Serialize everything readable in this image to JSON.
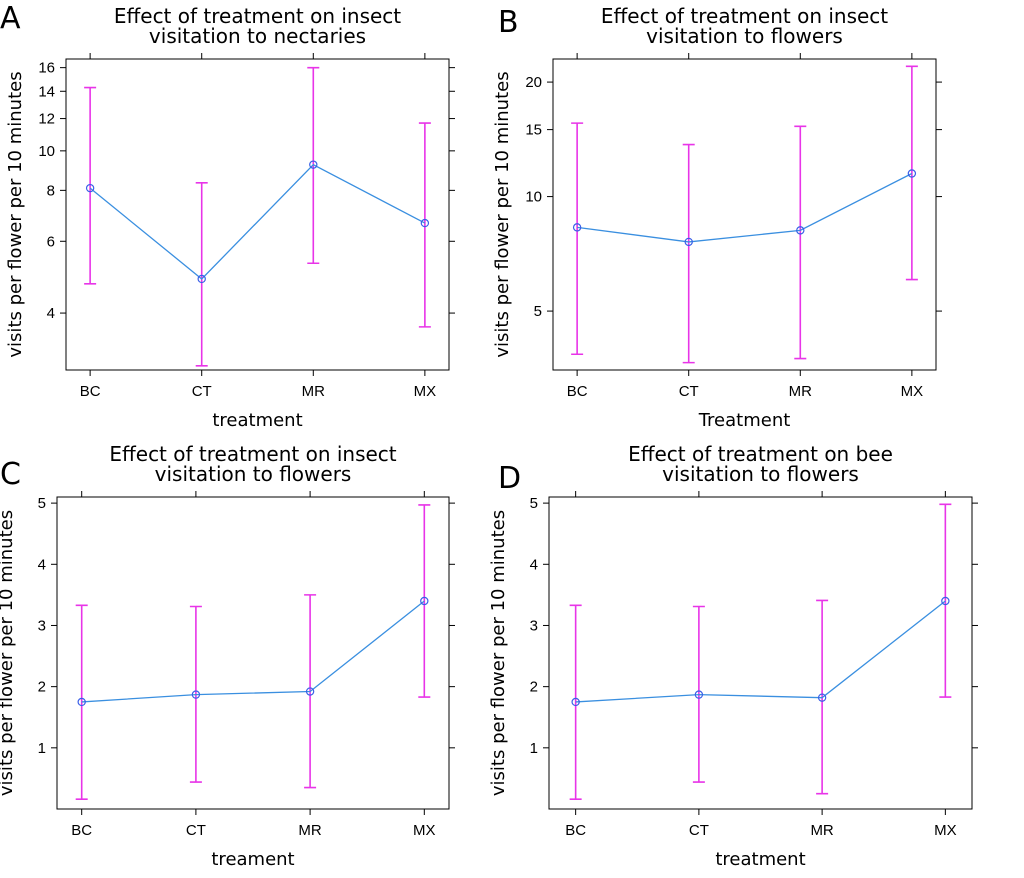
{
  "chart_data": [
    {
      "panel": "A",
      "type": "line",
      "title_lines": [
        "Effect of treatment on insect",
        "visitation to nectaries"
      ],
      "xlabel": "treatment",
      "ylabel": "visits per flower  per 10 minutes",
      "yscale": "log",
      "ylim": [
        2.9,
        16.8
      ],
      "yticks": [
        4,
        6,
        8,
        10,
        12,
        14,
        16
      ],
      "categories": [
        "BC",
        "CT",
        "MR",
        "MX"
      ],
      "values": [
        8.1,
        4.85,
        9.25,
        6.65
      ],
      "lower": [
        4.72,
        2.97,
        5.3,
        3.7
      ],
      "upper": [
        14.3,
        8.35,
        16.0,
        11.7
      ]
    },
    {
      "panel": "B",
      "type": "line",
      "title_lines": [
        "Effect of treatment on insect",
        "visitation to flowers"
      ],
      "xlabel": "Treatment",
      "ylabel": "visits per flower  per 10 minutes",
      "yscale": "log",
      "ylim": [
        3.5,
        23.0
      ],
      "yticks": [
        5,
        10,
        15,
        20
      ],
      "categories": [
        "BC",
        "CT",
        "MR",
        "MX"
      ],
      "values": [
        8.3,
        7.6,
        8.15,
        11.5
      ],
      "lower": [
        3.85,
        3.66,
        3.75,
        6.05
      ],
      "upper": [
        15.6,
        13.7,
        15.3,
        22.0
      ]
    },
    {
      "panel": "C",
      "type": "line",
      "title_lines": [
        "Effect of treatment on insect",
        "visitation to flowers"
      ],
      "xlabel": "treament",
      "ylabel": "visits per flower  per 10 minutes",
      "yscale": "linear",
      "ylim": [
        0.0,
        5.1
      ],
      "yticks": [
        1,
        2,
        3,
        4,
        5
      ],
      "categories": [
        "BC",
        "CT",
        "MR",
        "MX"
      ],
      "values": [
        1.75,
        1.87,
        1.92,
        3.4
      ],
      "lower": [
        0.16,
        0.44,
        0.35,
        1.83
      ],
      "upper": [
        3.33,
        3.31,
        3.5,
        4.97
      ]
    },
    {
      "panel": "D",
      "type": "line",
      "title_lines": [
        "Effect of treatment on bee",
        "visitation to flowers"
      ],
      "xlabel": "treatment",
      "ylabel": "visits per flower  per 10 minutes",
      "yscale": "linear",
      "ylim": [
        0.0,
        5.1
      ],
      "yticks": [
        1,
        2,
        3,
        4,
        5
      ],
      "categories": [
        "BC",
        "CT",
        "MR",
        "MX"
      ],
      "values": [
        1.75,
        1.87,
        1.82,
        3.4
      ],
      "lower": [
        0.16,
        0.44,
        0.25,
        1.83
      ],
      "upper": [
        3.33,
        3.31,
        3.41,
        4.98
      ]
    }
  ]
}
